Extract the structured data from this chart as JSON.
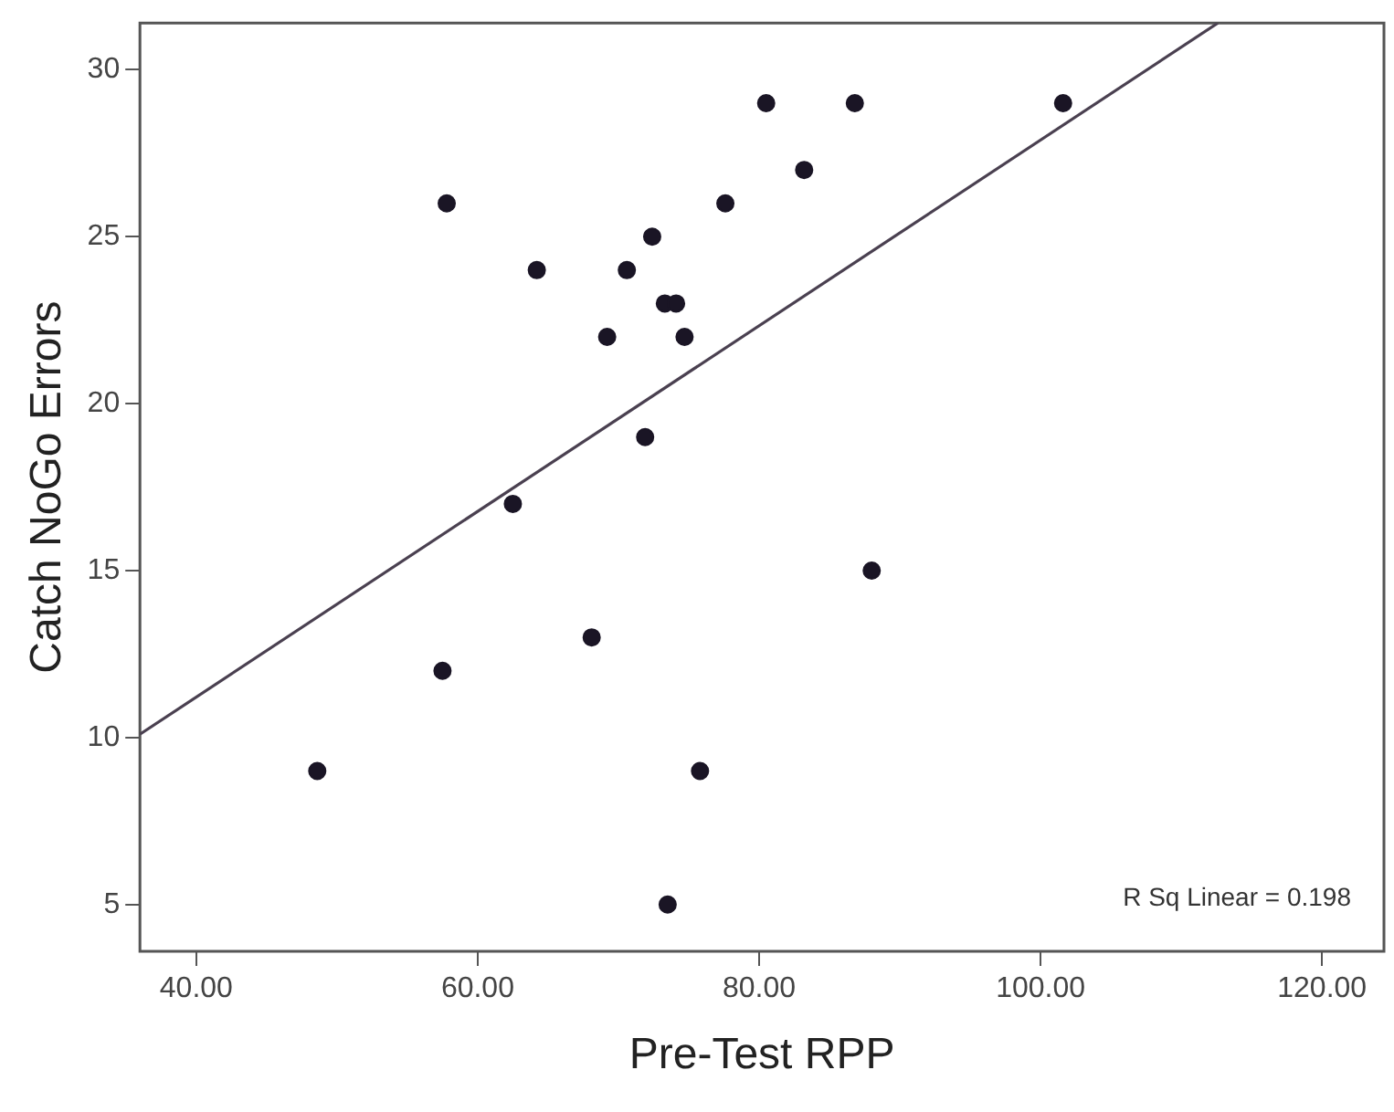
{
  "chart_data": {
    "type": "scatter",
    "xlabel": "Pre-Test RPP",
    "ylabel": "Catch NoGo Errors",
    "annotations": [
      "R Sq Linear = 0.198"
    ],
    "series": [
      {
        "type": "scatter",
        "color": "#1a1525",
        "marker": "circle",
        "x": [
          80.5,
          57.8,
          77.6,
          72.4,
          64.2,
          70.6,
          73.3,
          74.1,
          69.2,
          74.7,
          71.9,
          62.5,
          86.8,
          101.6,
          83.2,
          57.5,
          68.1,
          48.6,
          75.8,
          73.5,
          88.0
        ],
        "values": [
          29,
          26,
          26,
          25,
          24,
          24,
          23,
          23,
          22,
          22,
          19,
          17,
          29,
          29,
          27,
          12,
          13,
          9,
          9,
          5,
          15
        ]
      },
      {
        "type": "line",
        "color": "#4a4050",
        "marker": "none",
        "line_style": "solid",
        "x": [
          36,
          112.6
        ],
        "values": [
          10.1,
          31.4
        ]
      }
    ],
    "xlim": [
      36,
      124.4
    ],
    "ylim": [
      3.6,
      31.4
    ],
    "xticks": [
      {
        "value": 40,
        "label": "40.00"
      },
      {
        "value": 60,
        "label": "60.00"
      },
      {
        "value": 80,
        "label": "80.00"
      },
      {
        "value": 100,
        "label": "100.00"
      },
      {
        "value": 120,
        "label": "120.00"
      }
    ],
    "yticks": [
      5,
      10,
      15,
      20,
      25,
      30
    ],
    "grid": false,
    "legend": false
  }
}
